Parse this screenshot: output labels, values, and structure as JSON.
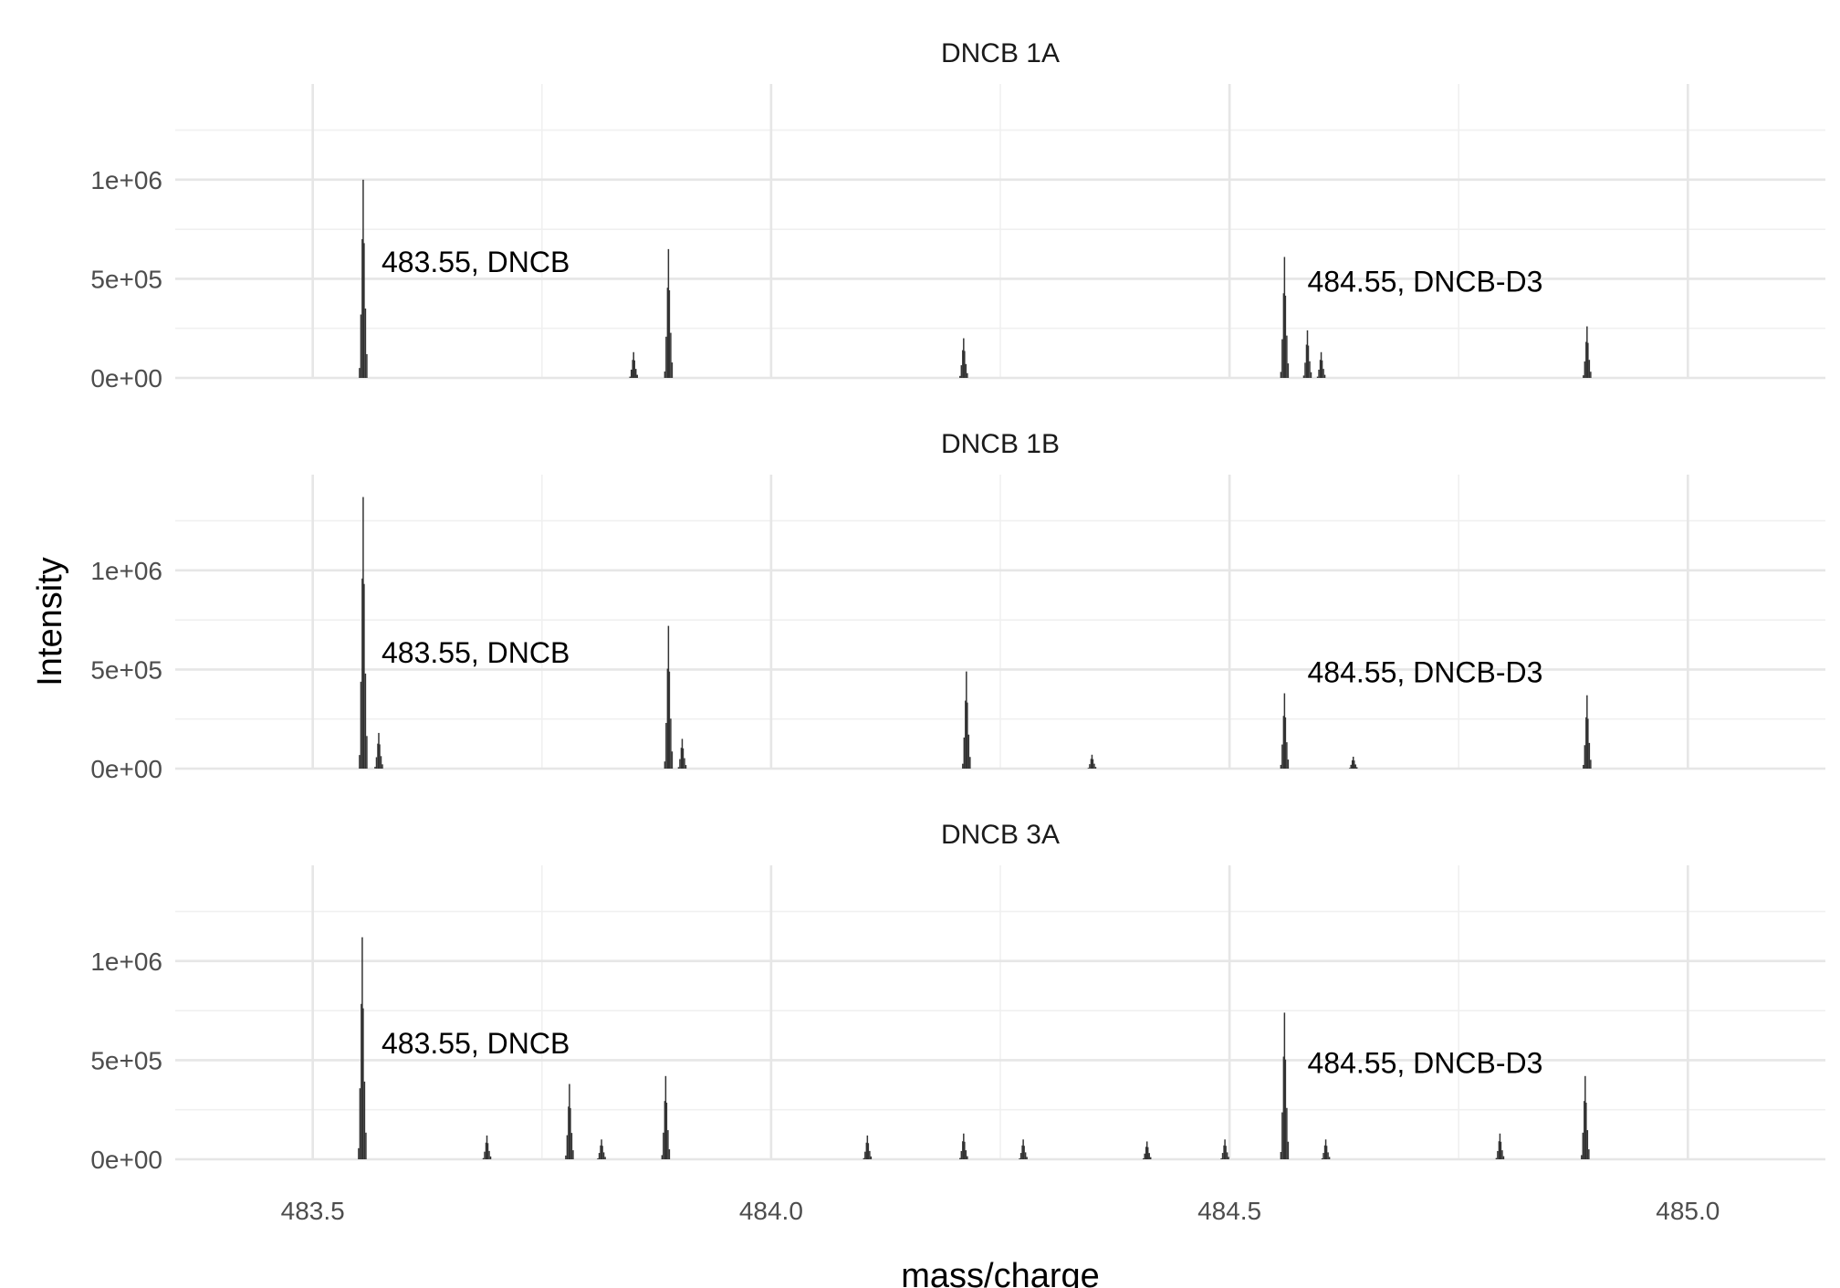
{
  "chart_data": {
    "type": "line",
    "xlabel": "mass/charge",
    "ylabel": "Intensity",
    "xlim": [
      483.35,
      485.15
    ],
    "ylim": [
      0,
      1400000
    ],
    "x_ticks": [
      483.5,
      484.0,
      484.5,
      485.0
    ],
    "x_tick_labels": [
      "483.5",
      "484.0",
      "484.5",
      "485.0"
    ],
    "y_ticks": [
      0,
      500000,
      1000000
    ],
    "y_tick_labels": [
      "0e+00",
      "5e+05",
      "1e+06"
    ],
    "grid": true,
    "panels": [
      {
        "title": "DNCB 1A",
        "annotations": [
          {
            "text": "483.55, DNCB",
            "x": 483.575,
            "y": 590000
          },
          {
            "text": "484.55, DNCB-D3",
            "x": 484.585,
            "y": 490000
          }
        ],
        "peaks": [
          {
            "mz": 483.555,
            "intensity": 1000000
          },
          {
            "mz": 483.85,
            "intensity": 130000
          },
          {
            "mz": 483.888,
            "intensity": 650000
          },
          {
            "mz": 484.21,
            "intensity": 200000
          },
          {
            "mz": 484.56,
            "intensity": 610000
          },
          {
            "mz": 484.585,
            "intensity": 240000
          },
          {
            "mz": 484.6,
            "intensity": 130000
          },
          {
            "mz": 484.89,
            "intensity": 260000
          }
        ]
      },
      {
        "title": "DNCB 1B",
        "annotations": [
          {
            "text": "483.55, DNCB",
            "x": 483.575,
            "y": 590000
          },
          {
            "text": "484.55, DNCB-D3",
            "x": 484.585,
            "y": 490000
          }
        ],
        "peaks": [
          {
            "mz": 483.555,
            "intensity": 1370000
          },
          {
            "mz": 483.572,
            "intensity": 180000
          },
          {
            "mz": 483.888,
            "intensity": 720000
          },
          {
            "mz": 483.903,
            "intensity": 150000
          },
          {
            "mz": 484.213,
            "intensity": 490000
          },
          {
            "mz": 484.35,
            "intensity": 70000
          },
          {
            "mz": 484.56,
            "intensity": 380000
          },
          {
            "mz": 484.635,
            "intensity": 60000
          },
          {
            "mz": 484.89,
            "intensity": 370000
          }
        ]
      },
      {
        "title": "DNCB 3A",
        "annotations": [
          {
            "text": "483.55, DNCB",
            "x": 483.575,
            "y": 590000
          },
          {
            "text": "484.55, DNCB-D3",
            "x": 484.585,
            "y": 490000
          }
        ],
        "peaks": [
          {
            "mz": 483.554,
            "intensity": 1120000
          },
          {
            "mz": 483.69,
            "intensity": 120000
          },
          {
            "mz": 483.78,
            "intensity": 380000
          },
          {
            "mz": 483.815,
            "intensity": 100000
          },
          {
            "mz": 483.885,
            "intensity": 420000
          },
          {
            "mz": 484.105,
            "intensity": 120000
          },
          {
            "mz": 484.21,
            "intensity": 130000
          },
          {
            "mz": 484.275,
            "intensity": 100000
          },
          {
            "mz": 484.41,
            "intensity": 90000
          },
          {
            "mz": 484.495,
            "intensity": 100000
          },
          {
            "mz": 484.56,
            "intensity": 740000
          },
          {
            "mz": 484.605,
            "intensity": 100000
          },
          {
            "mz": 484.795,
            "intensity": 130000
          },
          {
            "mz": 484.888,
            "intensity": 420000
          }
        ]
      }
    ]
  }
}
